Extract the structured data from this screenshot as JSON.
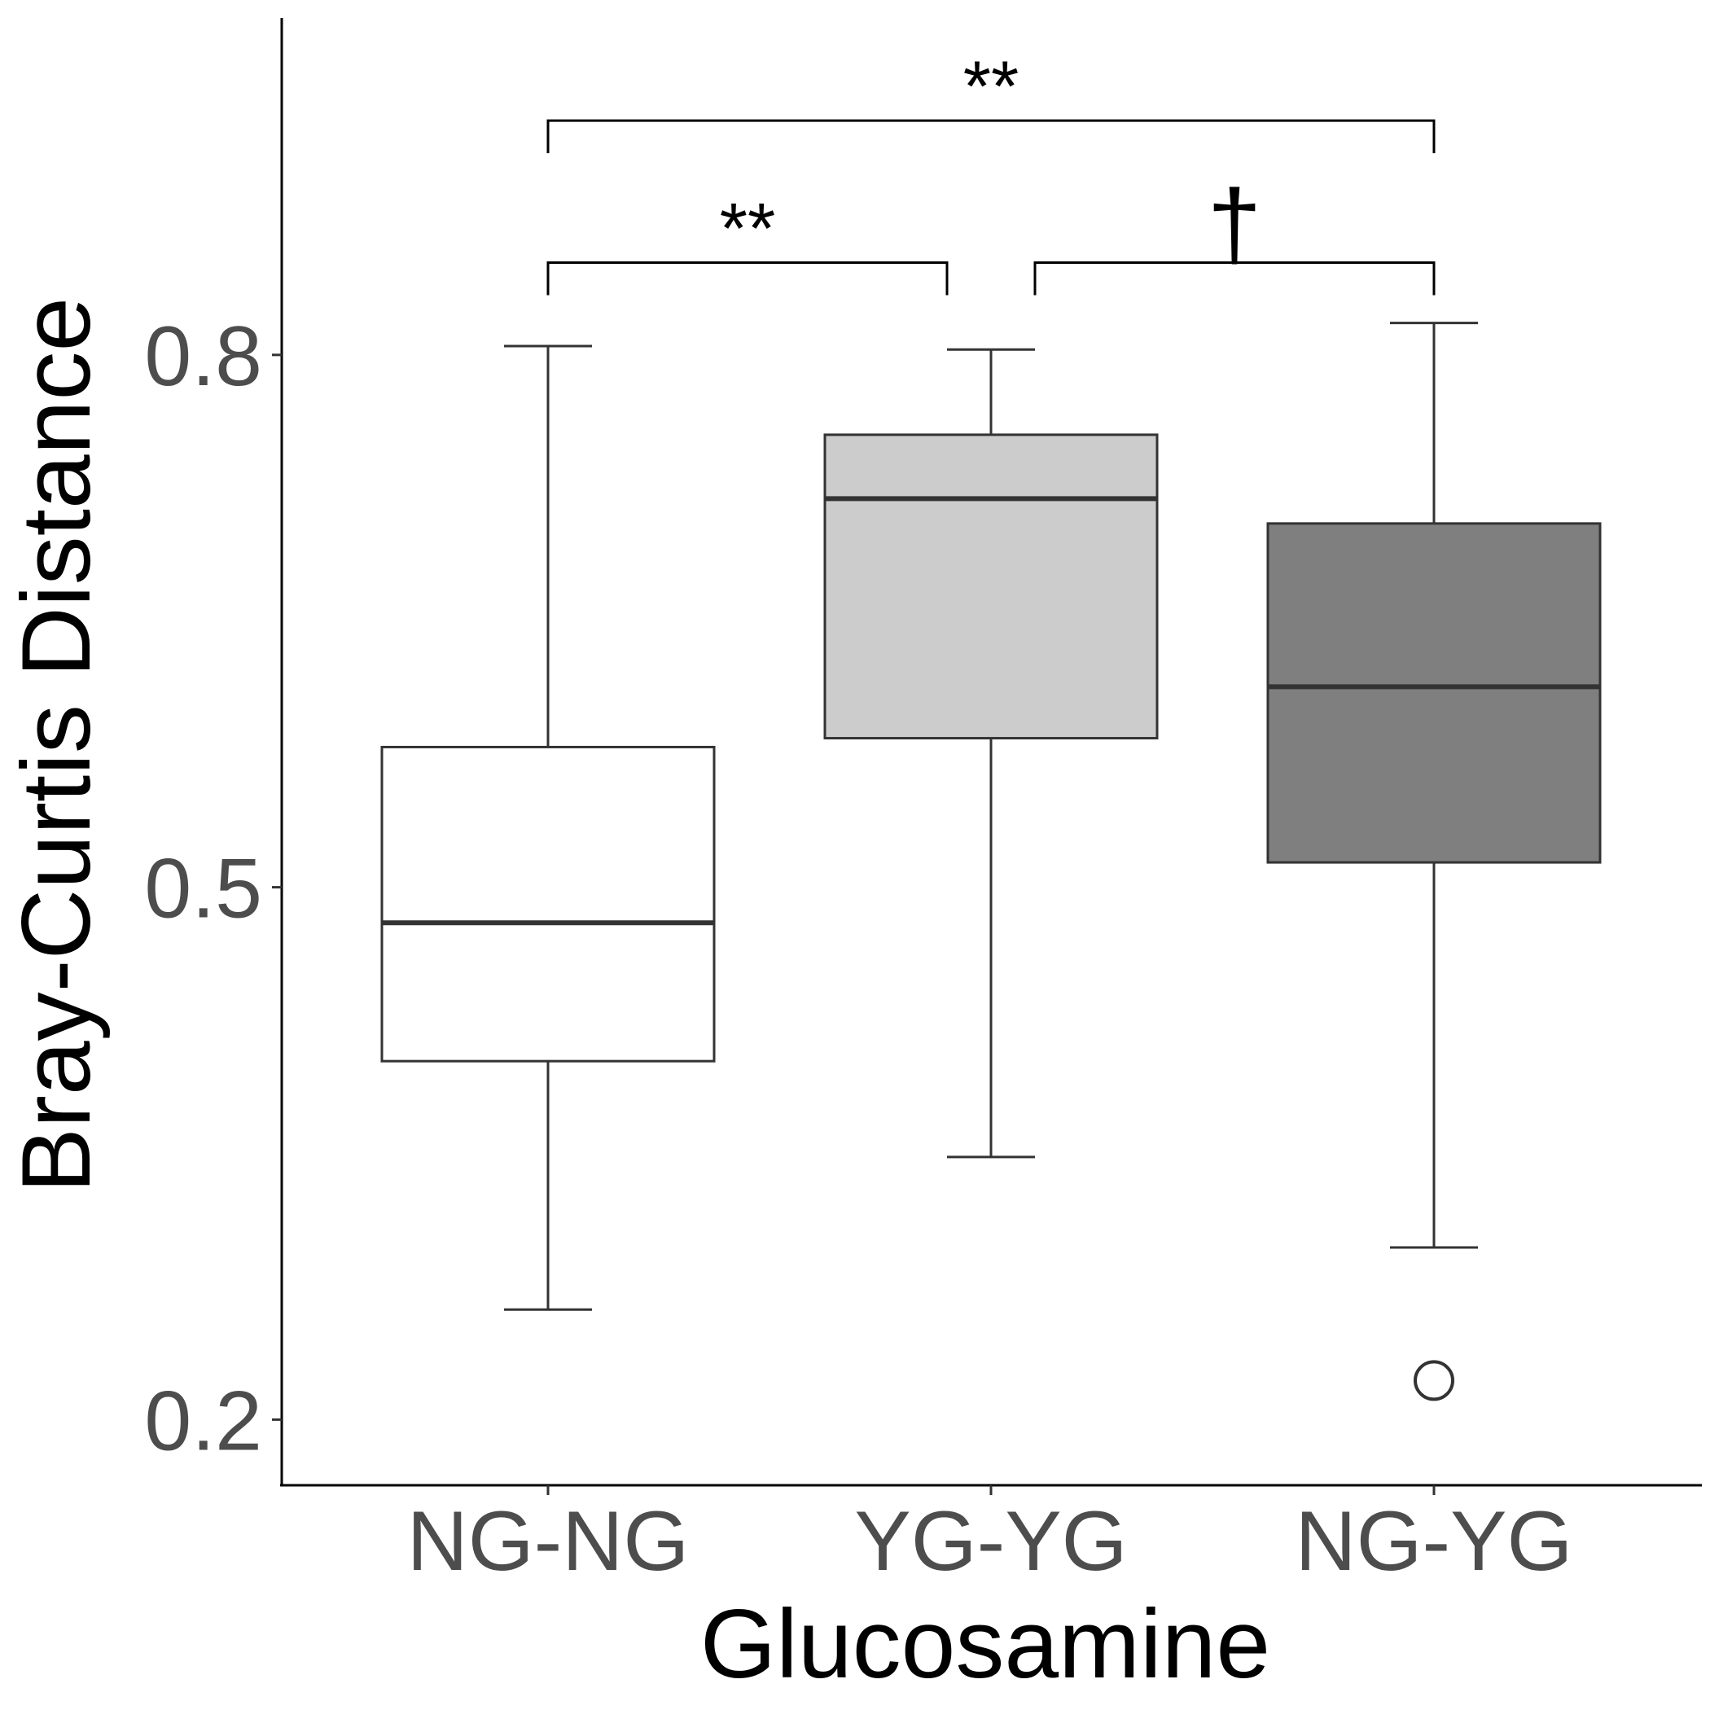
{
  "chart_data": {
    "type": "boxplot",
    "xlabel": "Glucosamine",
    "ylabel": "Bray-Curtis Distance",
    "ylim": [
      0.163,
      1.0
    ],
    "yticks": [
      "0.2",
      "0.5",
      "0.8"
    ],
    "grid": false,
    "legend": "none",
    "categories": [
      "NG-NG",
      "YG-YG",
      "NG-YG"
    ],
    "boxes": [
      {
        "category": "NG-NG",
        "whisker_low": 0.262,
        "q1": 0.402,
        "median": 0.48,
        "q3": 0.579,
        "whisker_high": 0.805,
        "outliers": [],
        "fill": "#ffffff"
      },
      {
        "category": "YG-YG",
        "whisker_low": 0.348,
        "q1": 0.584,
        "median": 0.719,
        "q3": 0.755,
        "whisker_high": 0.803,
        "outliers": [],
        "fill": "#cccccc"
      },
      {
        "category": "NG-YG",
        "whisker_low": 0.297,
        "q1": 0.514,
        "median": 0.613,
        "q3": 0.705,
        "whisker_high": 0.818,
        "outliers": [
          0.222
        ],
        "fill": "#7f7f7f"
      }
    ],
    "significance": [
      {
        "from": "NG-NG",
        "to": "YG-YG",
        "y": 0.852,
        "label": "**"
      },
      {
        "from": "YG-YG",
        "to": "NG-YG",
        "y": 0.852,
        "label": "†"
      },
      {
        "from": "NG-NG",
        "to": "NG-YG",
        "y": 0.932,
        "label": "**"
      }
    ]
  }
}
